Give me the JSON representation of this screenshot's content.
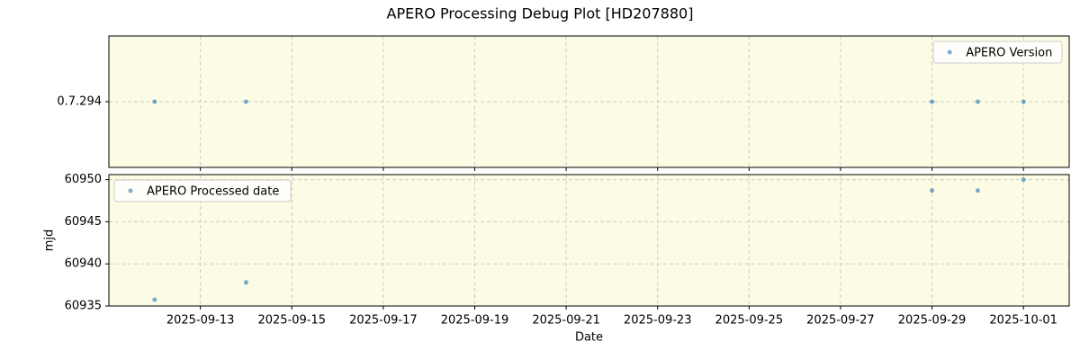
{
  "title": "APERO Processing Debug Plot [HD207880]",
  "chart_data": [
    {
      "type": "scatter",
      "x": [
        "2025-09-12",
        "2025-09-14",
        "2025-09-29",
        "2025-09-30",
        "2025-10-01"
      ],
      "y_categories": [
        "0.7.294"
      ],
      "series": [
        {
          "name": "APERO Version",
          "color": "#1f77b4",
          "values": [
            "0.7.294",
            "0.7.294",
            "0.7.294",
            "0.7.294",
            "0.7.294"
          ]
        }
      ],
      "xlim": [
        "2025-09-11",
        "2025-10-02"
      ],
      "xticks": [
        "2025-09-13",
        "2025-09-15",
        "2025-09-17",
        "2025-09-19",
        "2025-09-21",
        "2025-09-23",
        "2025-09-25",
        "2025-09-27",
        "2025-09-29",
        "2025-10-01"
      ],
      "grid": true,
      "legend": "upper right"
    },
    {
      "type": "scatter",
      "x": [
        "2025-09-12",
        "2025-09-14",
        "2025-09-29",
        "2025-09-30",
        "2025-10-01"
      ],
      "series": [
        {
          "name": "APERO Processed date",
          "color": "#1f77b4",
          "values": [
            60935.75,
            60937.8,
            60948.7,
            60948.7,
            60950.0
          ]
        }
      ],
      "xlim": [
        "2025-09-11",
        "2025-10-02"
      ],
      "xticks": [
        "2025-09-13",
        "2025-09-15",
        "2025-09-17",
        "2025-09-19",
        "2025-09-21",
        "2025-09-23",
        "2025-09-25",
        "2025-09-27",
        "2025-09-29",
        "2025-10-01"
      ],
      "ylim": [
        60935,
        60950.6
      ],
      "yticks": [
        60935,
        60940,
        60945,
        60950
      ],
      "ylabel": "mjd",
      "xlabel": "Date",
      "grid": true,
      "legend": "upper left"
    }
  ]
}
